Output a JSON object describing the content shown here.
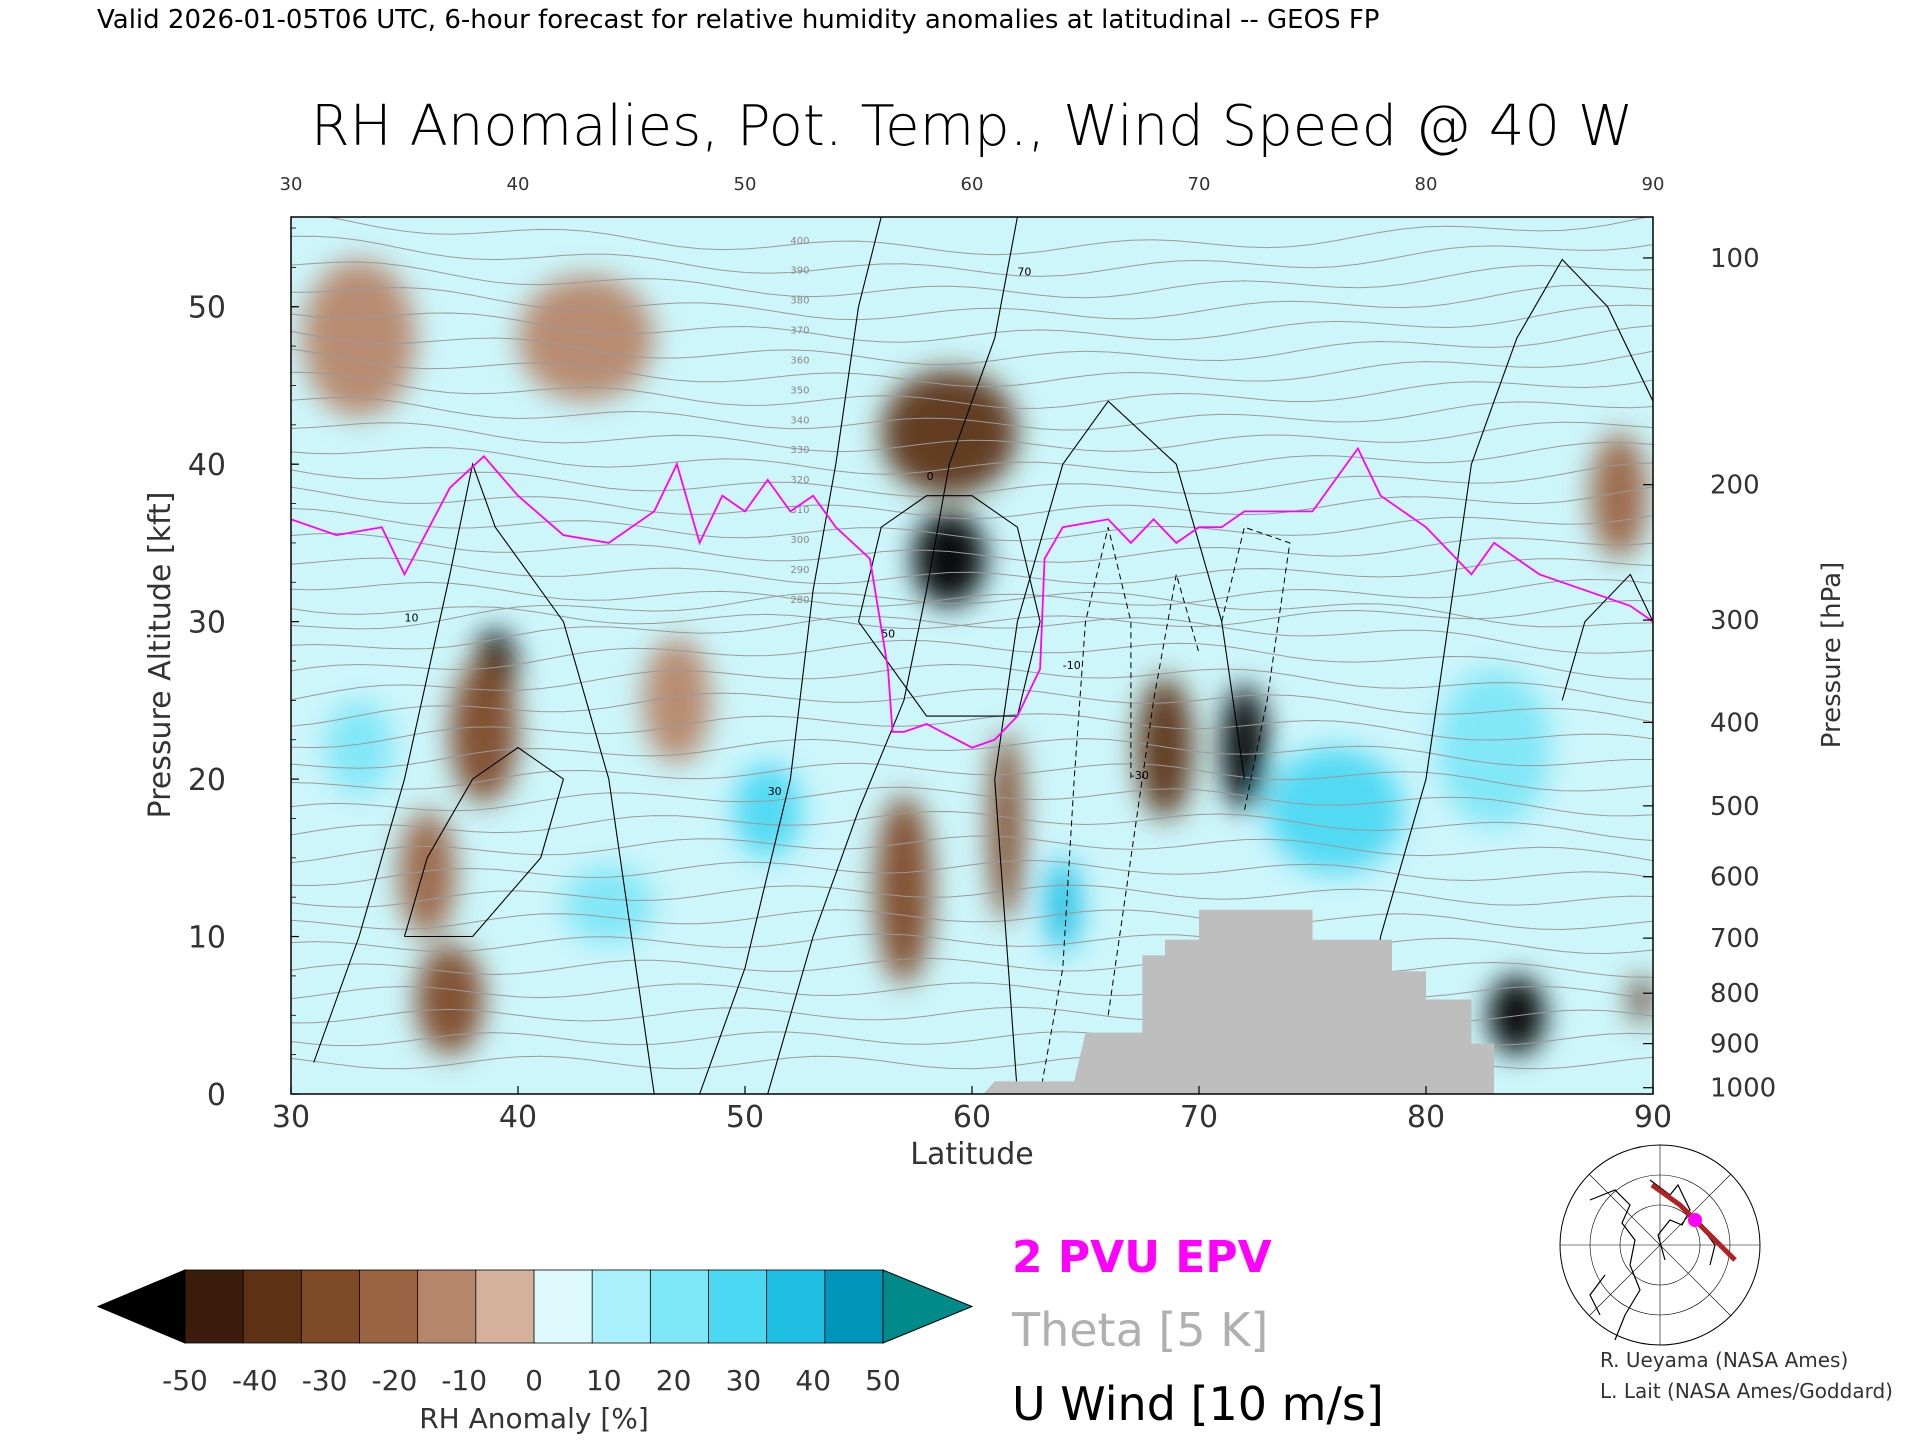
{
  "header": "Valid 2026-01-05T06 UTC, 6-hour forecast for relative humidity anomalies at latitudinal -- GEOS FP",
  "chart_data": {
    "type": "heatmap",
    "title": "RH Anomalies, Pot. Temp., Wind Speed @ 40 W",
    "xlabel": "Latitude",
    "ylabel_left": "Pressure Altitude [kft]",
    "ylabel_right": "Pressure [hPa]",
    "x_ticks": [
      30,
      40,
      50,
      60,
      70,
      80,
      90
    ],
    "xlim": [
      30,
      90
    ],
    "y_ticks_kft": [
      0,
      10,
      20,
      30,
      40,
      50
    ],
    "ylim_kft": [
      0,
      55.7
    ],
    "pressure_ticks": [
      {
        "label": "100",
        "kft": 53.1
      },
      {
        "label": "200",
        "kft": 38.7
      },
      {
        "label": "300",
        "kft": 30.1
      },
      {
        "label": "400",
        "kft": 23.6
      },
      {
        "label": "500",
        "kft": 18.3
      },
      {
        "label": "600",
        "kft": 13.8
      },
      {
        "label": "700",
        "kft": 9.9
      },
      {
        "label": "800",
        "kft": 6.4
      },
      {
        "label": "900",
        "kft": 3.2
      },
      {
        "label": "1000",
        "kft": 0.4
      }
    ],
    "colorbar": {
      "label": "RH Anomaly [%]",
      "tick_labels": [
        "-50",
        "-40",
        "-30",
        "-20",
        "-10",
        "0",
        "10",
        "20",
        "30",
        "40",
        "50"
      ],
      "colors": [
        "#3a1d0c",
        "#5c3114",
        "#7e4a27",
        "#9a6443",
        "#b6866a",
        "#d3b19c",
        "#e9d9cf",
        "#dffafc",
        "#a9f0fa",
        "#7de6f7",
        "#4bd8f2",
        "#1fbfe3",
        "#0094bb"
      ],
      "under_color": "#000000",
      "over_color": "#008b8b"
    },
    "anomaly_blobs": [
      {
        "lat": 59,
        "kft": 34,
        "value": -60,
        "w": 3.2,
        "h": 6
      },
      {
        "lat": 59,
        "kft": 42,
        "value": -45,
        "w": 6,
        "h": 8
      },
      {
        "lat": 39,
        "kft": 27,
        "value": -55,
        "w": 1.8,
        "h": 5
      },
      {
        "lat": 38.5,
        "kft": 23,
        "value": -40,
        "w": 3,
        "h": 9
      },
      {
        "lat": 37,
        "kft": 6,
        "value": -40,
        "w": 3,
        "h": 7
      },
      {
        "lat": 36,
        "kft": 14,
        "value": -30,
        "w": 2.5,
        "h": 8
      },
      {
        "lat": 68.5,
        "kft": 22,
        "value": -45,
        "w": 2.5,
        "h": 9
      },
      {
        "lat": 72,
        "kft": 22,
        "value": -50,
        "w": 2,
        "h": 8
      },
      {
        "lat": 84,
        "kft": 5,
        "value": -50,
        "w": 2.5,
        "h": 5
      },
      {
        "lat": 89.5,
        "kft": 6,
        "value": -45,
        "w": 1,
        "h": 3
      },
      {
        "lat": 57,
        "kft": 13,
        "value": -35,
        "w": 2.5,
        "h": 12
      },
      {
        "lat": 61.5,
        "kft": 17,
        "value": -35,
        "w": 1.5,
        "h": 12
      },
      {
        "lat": 47,
        "kft": 25,
        "value": -20,
        "w": 3,
        "h": 8
      },
      {
        "lat": 43,
        "kft": 48,
        "value": -20,
        "w": 6,
        "h": 8
      },
      {
        "lat": 33,
        "kft": 48,
        "value": -15,
        "w": 5,
        "h": 10
      },
      {
        "lat": 88.5,
        "kft": 38,
        "value": -30,
        "w": 2.5,
        "h": 8
      },
      {
        "lat": 76,
        "kft": 18,
        "value": 35,
        "w": 6,
        "h": 8
      },
      {
        "lat": 51,
        "kft": 18,
        "value": 30,
        "w": 3,
        "h": 6
      },
      {
        "lat": 64,
        "kft": 12,
        "value": 45,
        "w": 1.5,
        "h": 6
      },
      {
        "lat": 83,
        "kft": 22,
        "value": 25,
        "w": 5,
        "h": 10
      },
      {
        "lat": 44,
        "kft": 12,
        "value": 20,
        "w": 4,
        "h": 5
      },
      {
        "lat": 33,
        "kft": 22,
        "value": 25,
        "w": 3,
        "h": 6
      }
    ],
    "epv_2pvu_line": [
      [
        30,
        36.5
      ],
      [
        32,
        35.5
      ],
      [
        34,
        36
      ],
      [
        35,
        33
      ],
      [
        37,
        38.5
      ],
      [
        38.5,
        40.5
      ],
      [
        40,
        38
      ],
      [
        42,
        35.5
      ],
      [
        44,
        35
      ],
      [
        46,
        37
      ],
      [
        47,
        40
      ],
      [
        48,
        35
      ],
      [
        49,
        38
      ],
      [
        50,
        37
      ],
      [
        51,
        39
      ],
      [
        52,
        37
      ],
      [
        53,
        38
      ],
      [
        54,
        36
      ],
      [
        55.5,
        34
      ],
      [
        56.3,
        27
      ],
      [
        56.5,
        23
      ],
      [
        57,
        23
      ],
      [
        58,
        23.5
      ],
      [
        60,
        22
      ],
      [
        61,
        22.5
      ],
      [
        62,
        24
      ],
      [
        63,
        27
      ],
      [
        63.2,
        34
      ],
      [
        64,
        36
      ],
      [
        66,
        36.5
      ],
      [
        67,
        35
      ],
      [
        68,
        36.5
      ],
      [
        69,
        35
      ],
      [
        70,
        36
      ],
      [
        71,
        36
      ],
      [
        72,
        37
      ],
      [
        73,
        37
      ],
      [
        75,
        37
      ],
      [
        77,
        41
      ],
      [
        78,
        38
      ],
      [
        80,
        36
      ],
      [
        82,
        33
      ],
      [
        83,
        35
      ],
      [
        85,
        33
      ],
      [
        87,
        32
      ],
      [
        89,
        31
      ],
      [
        90,
        30
      ]
    ],
    "terrain_steps": [
      [
        60.5,
        0
      ],
      [
        61,
        0.8
      ],
      [
        64.5,
        0.8
      ],
      [
        65,
        3.9
      ],
      [
        67.5,
        3.9
      ],
      [
        67.5,
        8.8
      ],
      [
        68.5,
        8.8
      ],
      [
        68.5,
        9.8
      ],
      [
        70,
        9.8
      ],
      [
        70,
        11.7
      ],
      [
        73,
        11.7
      ],
      [
        73,
        11.7
      ],
      [
        75,
        11.7
      ],
      [
        75,
        9.8
      ],
      [
        78.5,
        9.8
      ],
      [
        78.5,
        7.8
      ],
      [
        80,
        7.8
      ],
      [
        80,
        6
      ],
      [
        82,
        6
      ],
      [
        82,
        3.2
      ],
      [
        83,
        3.2
      ],
      [
        83,
        0
      ]
    ],
    "theta_labels": [
      "400",
      "390",
      "380",
      "370",
      "360",
      "350",
      "340",
      "330",
      "320",
      "310",
      "300",
      "290",
      "280"
    ],
    "wind_contour_labels": [
      "10",
      "30",
      "50",
      "70",
      "0",
      "-10",
      "-30"
    ],
    "legend": [
      {
        "label": "2 PVU EPV",
        "color": "#ff00ff"
      },
      {
        "label": "Theta [5 K]",
        "color": "#b0b0b0"
      },
      {
        "label": "U Wind [10 m/s]",
        "color": "#000000"
      }
    ],
    "terrain_color": "#bebebe"
  },
  "credits": [
    "R. Ueyama (NASA Ames)",
    "L. Lait (NASA Ames/Goddard)"
  ]
}
